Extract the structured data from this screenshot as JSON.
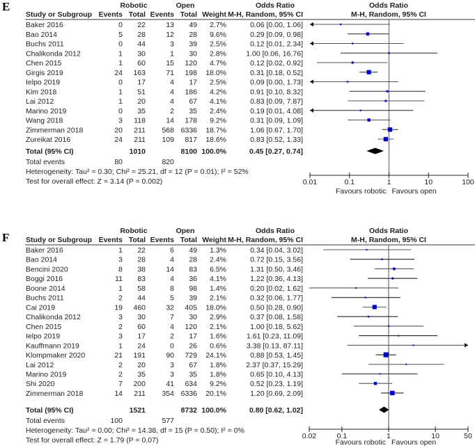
{
  "chart_data": [
    {
      "type": "forest",
      "panel_label": "E",
      "group_headers": {
        "robotic": "Robotic",
        "open": "Open",
        "or_table": "Odds Ratio",
        "or_plot": "Odds Ratio"
      },
      "column_headers": {
        "study": "Study or Subgroup",
        "events_r": "Events",
        "total_r": "Total",
        "events_o": "Events",
        "total_o": "Total",
        "weight": "Weight",
        "ci": "M-H, Random, 95% CI",
        "ci_plot": "M-H, Random, 95% CI"
      },
      "studies": [
        {
          "name": "Baker 2016",
          "events_r": "0",
          "total_r": "22",
          "events_o": "13",
          "total_o": "49",
          "weight": "2.7%",
          "ci_text": "0.06 [0.00, 1.06]",
          "or": 0.06,
          "lo": 0.0,
          "hi": 1.06,
          "w": 2.7
        },
        {
          "name": "Bao 2014",
          "events_r": "5",
          "total_r": "28",
          "events_o": "12",
          "total_o": "28",
          "weight": "9.6%",
          "ci_text": "0.29 [0.09, 0.98]",
          "or": 0.29,
          "lo": 0.09,
          "hi": 0.98,
          "w": 9.6
        },
        {
          "name": "Buchs 2011",
          "events_r": "0",
          "total_r": "44",
          "events_o": "3",
          "total_o": "39",
          "weight": "2.5%",
          "ci_text": "0.12 [0.01, 2.34]",
          "or": 0.12,
          "lo": 0.0,
          "hi": 2.34,
          "w": 2.5
        },
        {
          "name": "Chalikonda 2012",
          "events_r": "1",
          "total_r": "30",
          "events_o": "1",
          "total_o": "30",
          "weight": "2.8%",
          "ci_text": "1.00 [0.06, 16.76]",
          "or": 1.0,
          "lo": 0.06,
          "hi": 16.76,
          "w": 2.8
        },
        {
          "name": "Chen 2015",
          "events_r": "1",
          "total_r": "60",
          "events_o": "15",
          "total_o": "120",
          "weight": "4.7%",
          "ci_text": "0.12 [0.02, 0.92]",
          "or": 0.12,
          "lo": 0.015,
          "hi": 0.92,
          "w": 4.7
        },
        {
          "name": "Girgis 2019",
          "events_r": "24",
          "total_r": "163",
          "events_o": "71",
          "total_o": "198",
          "weight": "18.0%",
          "ci_text": "0.31 [0.18, 0.52]",
          "or": 0.31,
          "lo": 0.18,
          "hi": 0.52,
          "w": 18.0
        },
        {
          "name": "Ielpo 2019",
          "events_r": "0",
          "total_r": "17",
          "events_o": "4",
          "total_o": "17",
          "weight": "2.5%",
          "ci_text": "0.09 [0.00, 1.73]",
          "or": 0.09,
          "lo": 0.0,
          "hi": 1.73,
          "w": 2.5
        },
        {
          "name": "Kim 2018",
          "events_r": "1",
          "total_r": "51",
          "events_o": "4",
          "total_o": "186",
          "weight": "4.2%",
          "ci_text": "0.91 [0.10, 8.32]",
          "or": 0.91,
          "lo": 0.1,
          "hi": 8.32,
          "w": 4.2
        },
        {
          "name": "Lai 2012",
          "events_r": "1",
          "total_r": "20",
          "events_o": "4",
          "total_o": "67",
          "weight": "4.1%",
          "ci_text": "0.83 [0.09, 7.87]",
          "or": 0.83,
          "lo": 0.09,
          "hi": 7.87,
          "w": 4.1
        },
        {
          "name": "Marino 2019",
          "events_r": "0",
          "total_r": "35",
          "events_o": "2",
          "total_o": "35",
          "weight": "2.4%",
          "ci_text": "0.19 [0.01, 4.08]",
          "or": 0.19,
          "lo": 0.0,
          "hi": 4.08,
          "w": 2.4
        },
        {
          "name": "Wang 2018",
          "events_r": "3",
          "total_r": "118",
          "events_o": "14",
          "total_o": "178",
          "weight": "9.2%",
          "ci_text": "0.31 [0.09, 1.09]",
          "or": 0.31,
          "lo": 0.09,
          "hi": 1.09,
          "w": 9.2
        },
        {
          "name": "Zimmerman 2018",
          "events_r": "20",
          "total_r": "211",
          "events_o": "568",
          "total_o": "6336",
          "weight": "18.7%",
          "ci_text": "1.06 [0.67, 1.70]",
          "or": 1.06,
          "lo": 0.67,
          "hi": 1.7,
          "w": 18.7
        },
        {
          "name": "Zureikat 2016",
          "events_r": "24",
          "total_r": "211",
          "events_o": "109",
          "total_o": "817",
          "weight": "18.6%",
          "ci_text": "0.83 [0.52, 1.33]",
          "or": 0.83,
          "lo": 0.52,
          "hi": 1.33,
          "w": 18.6
        }
      ],
      "total": {
        "label": "Total (95% CI)",
        "total_r": "1010",
        "total_o": "8100",
        "weight": "100.0%",
        "ci_text": "0.45 [0.27, 0.74]",
        "or": 0.45,
        "lo": 0.27,
        "hi": 0.74
      },
      "total_events": {
        "label": "Total events",
        "robotic": "80",
        "open": "820"
      },
      "heterogeneity": "Heterogeneity: Tau² = 0.30; Chi² = 25.21, df = 12 (P = 0.01); I² = 52%",
      "overall_effect": "Test for overall effect: Z = 3.14 (P = 0.002)",
      "axis": {
        "scale": "log",
        "min": 0.01,
        "max": 100,
        "ticks": [
          0.01,
          0.1,
          1,
          10,
          100
        ],
        "tick_labels": [
          "0.01",
          "0.1",
          "1",
          "10",
          "100"
        ]
      },
      "favours_left": "Favours robotic",
      "favours_right": "Favours open"
    },
    {
      "type": "forest",
      "panel_label": "F",
      "group_headers": {
        "robotic": "Robotic",
        "open": "Open",
        "or_table": "Odds Ratio",
        "or_plot": "Odds Ratio"
      },
      "column_headers": {
        "study": "Study or Subgroup",
        "events_r": "Events",
        "total_r": "Total",
        "events_o": "Events",
        "total_o": "Total",
        "weight": "Weight",
        "ci": "M-H, Random, 95% CI",
        "ci_plot": "M-H, Random, 95% CI"
      },
      "studies": [
        {
          "name": "Baker 2016",
          "events_r": "1",
          "total_r": "22",
          "events_o": "6",
          "total_o": "49",
          "weight": "1.3%",
          "ci_text": "0.34 [0.04, 3.02]",
          "or": 0.34,
          "lo": 0.04,
          "hi": 3.02,
          "w": 1.3
        },
        {
          "name": "Bao 2014",
          "events_r": "3",
          "total_r": "28",
          "events_o": "4",
          "total_o": "28",
          "weight": "2.4%",
          "ci_text": "0.72 [0.15, 3.56]",
          "or": 0.72,
          "lo": 0.15,
          "hi": 3.56,
          "w": 2.4
        },
        {
          "name": "Bencini 2020",
          "events_r": "8",
          "total_r": "38",
          "events_o": "14",
          "total_o": "83",
          "weight": "6.5%",
          "ci_text": "1.31 [0.50, 3.46]",
          "or": 1.31,
          "lo": 0.5,
          "hi": 3.46,
          "w": 6.5
        },
        {
          "name": "Boggi 2016",
          "events_r": "11",
          "total_r": "83",
          "events_o": "4",
          "total_o": "36",
          "weight": "4.1%",
          "ci_text": "1.22 [0.36, 4.13]",
          "or": 1.22,
          "lo": 0.36,
          "hi": 4.13,
          "w": 4.1
        },
        {
          "name": "Boone 2014",
          "events_r": "1",
          "total_r": "58",
          "events_o": "8",
          "total_o": "98",
          "weight": "1.4%",
          "ci_text": "0.20 [0.02, 1.62]",
          "or": 0.2,
          "lo": 0.02,
          "hi": 1.62,
          "w": 1.4
        },
        {
          "name": "Buchs 2011",
          "events_r": "2",
          "total_r": "44",
          "events_o": "5",
          "total_o": "39",
          "weight": "2.1%",
          "ci_text": "0.32 [0.06, 1.77]",
          "or": 0.32,
          "lo": 0.06,
          "hi": 1.77,
          "w": 2.1
        },
        {
          "name": "Cai 2019",
          "events_r": "19",
          "total_r": "460",
          "events_o": "32",
          "total_o": "405",
          "weight": "18.0%",
          "ci_text": "0.50 [0.28, 0.90]",
          "or": 0.5,
          "lo": 0.28,
          "hi": 0.9,
          "w": 18.0
        },
        {
          "name": "Chalikonda 2012",
          "events_r": "3",
          "total_r": "30",
          "events_o": "7",
          "total_o": "30",
          "weight": "2.9%",
          "ci_text": "0.37 [0.08, 1.58]",
          "or": 0.37,
          "lo": 0.08,
          "hi": 1.58,
          "w": 2.9
        },
        {
          "name": "Chen 2015",
          "events_r": "2",
          "total_r": "60",
          "events_o": "4",
          "total_o": "120",
          "weight": "2.1%",
          "ci_text": "1.00 [0.18, 5.62]",
          "or": 1.0,
          "lo": 0.18,
          "hi": 5.62,
          "w": 2.1
        },
        {
          "name": "Ielpo 2019",
          "events_r": "3",
          "total_r": "17",
          "events_o": "2",
          "total_o": "17",
          "weight": "1.6%",
          "ci_text": "1.61 [0.23, 11.09]",
          "or": 1.61,
          "lo": 0.23,
          "hi": 11.09,
          "w": 1.6
        },
        {
          "name": "Kauffmann 2019",
          "events_r": "1",
          "total_r": "24",
          "events_o": "0",
          "total_o": "26",
          "weight": "0.6%",
          "ci_text": "3.38 [0.13, 87.11]",
          "or": 3.38,
          "lo": 0.13,
          "hi": 87.11,
          "w": 0.6
        },
        {
          "name": "Klompmaker 2020",
          "events_r": "21",
          "total_r": "191",
          "events_o": "90",
          "total_o": "729",
          "weight": "24.1%",
          "ci_text": "0.88 [0.53, 1.45]",
          "or": 0.88,
          "lo": 0.53,
          "hi": 1.45,
          "w": 24.1
        },
        {
          "name": "Lai 2012",
          "events_r": "2",
          "total_r": "20",
          "events_o": "3",
          "total_o": "67",
          "weight": "1.8%",
          "ci_text": "2.37 [0.37, 15.29]",
          "or": 2.37,
          "lo": 0.37,
          "hi": 15.29,
          "w": 1.8
        },
        {
          "name": "Marino 2019",
          "events_r": "2",
          "total_r": "35",
          "events_o": "3",
          "total_o": "35",
          "weight": "1.8%",
          "ci_text": "0.65 [0.10, 4.13]",
          "or": 0.65,
          "lo": 0.1,
          "hi": 4.13,
          "w": 1.8
        },
        {
          "name": "Shi 2020",
          "events_r": "7",
          "total_r": "200",
          "events_o": "41",
          "total_o": "634",
          "weight": "9.2%",
          "ci_text": "0.52 [0.23, 1.19]",
          "or": 0.52,
          "lo": 0.23,
          "hi": 1.19,
          "w": 9.2
        },
        {
          "name": "Zimmerman 2018",
          "events_r": "14",
          "total_r": "211",
          "events_o": "354",
          "total_o": "6336",
          "weight": "20.1%",
          "ci_text": "1.20 [0.69, 2.09]",
          "or": 1.2,
          "lo": 0.69,
          "hi": 2.09,
          "w": 20.1
        }
      ],
      "total": {
        "label": "Total (95% CI)",
        "total_r": "1521",
        "total_o": "8732",
        "weight": "100.0%",
        "ci_text": "0.80 [0.62, 1.02]",
        "or": 0.8,
        "lo": 0.62,
        "hi": 1.02
      },
      "total_events": {
        "label": "Total events",
        "robotic": "100",
        "open": "577"
      },
      "heterogeneity": "Heterogeneity: Tau² = 0.00; Chi² = 14.38, df = 15 (P = 0.50); I² = 0%",
      "overall_effect": "Test for overall effect: Z = 1.79 (P = 0.07)",
      "axis": {
        "scale": "log",
        "min": 0.02,
        "max": 50,
        "ticks": [
          0.02,
          0.1,
          1,
          10,
          50
        ],
        "tick_labels": [
          "0.02",
          "0.1",
          "1",
          "10",
          "50"
        ]
      },
      "favours_left": "Favours robotic",
      "favours_right": "Favours open"
    }
  ],
  "colors": {
    "marker": "#0000cc",
    "ci_line": "#555555",
    "diamond": "#000000",
    "ref_line": "#777777"
  }
}
